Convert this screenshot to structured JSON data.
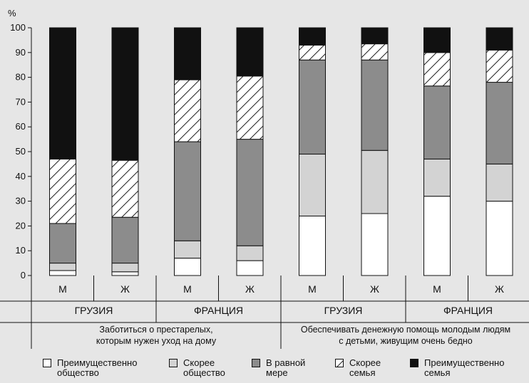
{
  "chart_data": {
    "type": "bar",
    "stacked": true,
    "yunit": "%",
    "ylim": [
      0,
      100
    ],
    "yticks": [
      0,
      10,
      20,
      30,
      40,
      50,
      60,
      70,
      80,
      90,
      100
    ],
    "categories": [
      "М",
      "Ж",
      "М",
      "Ж",
      "М",
      "Ж",
      "М",
      "Ж"
    ],
    "countries": [
      "ГРУЗИЯ",
      "ФРАНЦИЯ",
      "ГРУЗИЯ",
      "ФРАНЦИЯ"
    ],
    "topics": [
      "Заботиться о престарелых,\nкоторым нужен уход на дому",
      "Обеспечивать денежную помощь молодым людям\nс детьми, живущим очень бедно"
    ],
    "series": [
      {
        "name": "Преимущественно\nобщество",
        "color": "#ffffff",
        "pattern": "none",
        "values": [
          2,
          1.5,
          7,
          6,
          24,
          25,
          32,
          30
        ]
      },
      {
        "name": "Скорее\nобщество",
        "color": "#d3d3d3",
        "pattern": "none",
        "values": [
          3,
          3.5,
          7,
          6,
          25,
          25.5,
          15,
          15
        ]
      },
      {
        "name": "В равной\nмере",
        "color": "#8c8c8c",
        "pattern": "none",
        "values": [
          16,
          18.5,
          40,
          43,
          38,
          36.5,
          29.5,
          33
        ]
      },
      {
        "name": "Скорее\nсемья",
        "color": "#ffffff",
        "pattern": "hatch",
        "values": [
          26,
          23,
          25,
          25.5,
          6,
          6.5,
          13.5,
          13
        ]
      },
      {
        "name": "Преимущественно\nсемья",
        "color": "#111111",
        "pattern": "none",
        "values": [
          53,
          53.5,
          21,
          19.5,
          7,
          6.5,
          10,
          9
        ]
      }
    ]
  }
}
